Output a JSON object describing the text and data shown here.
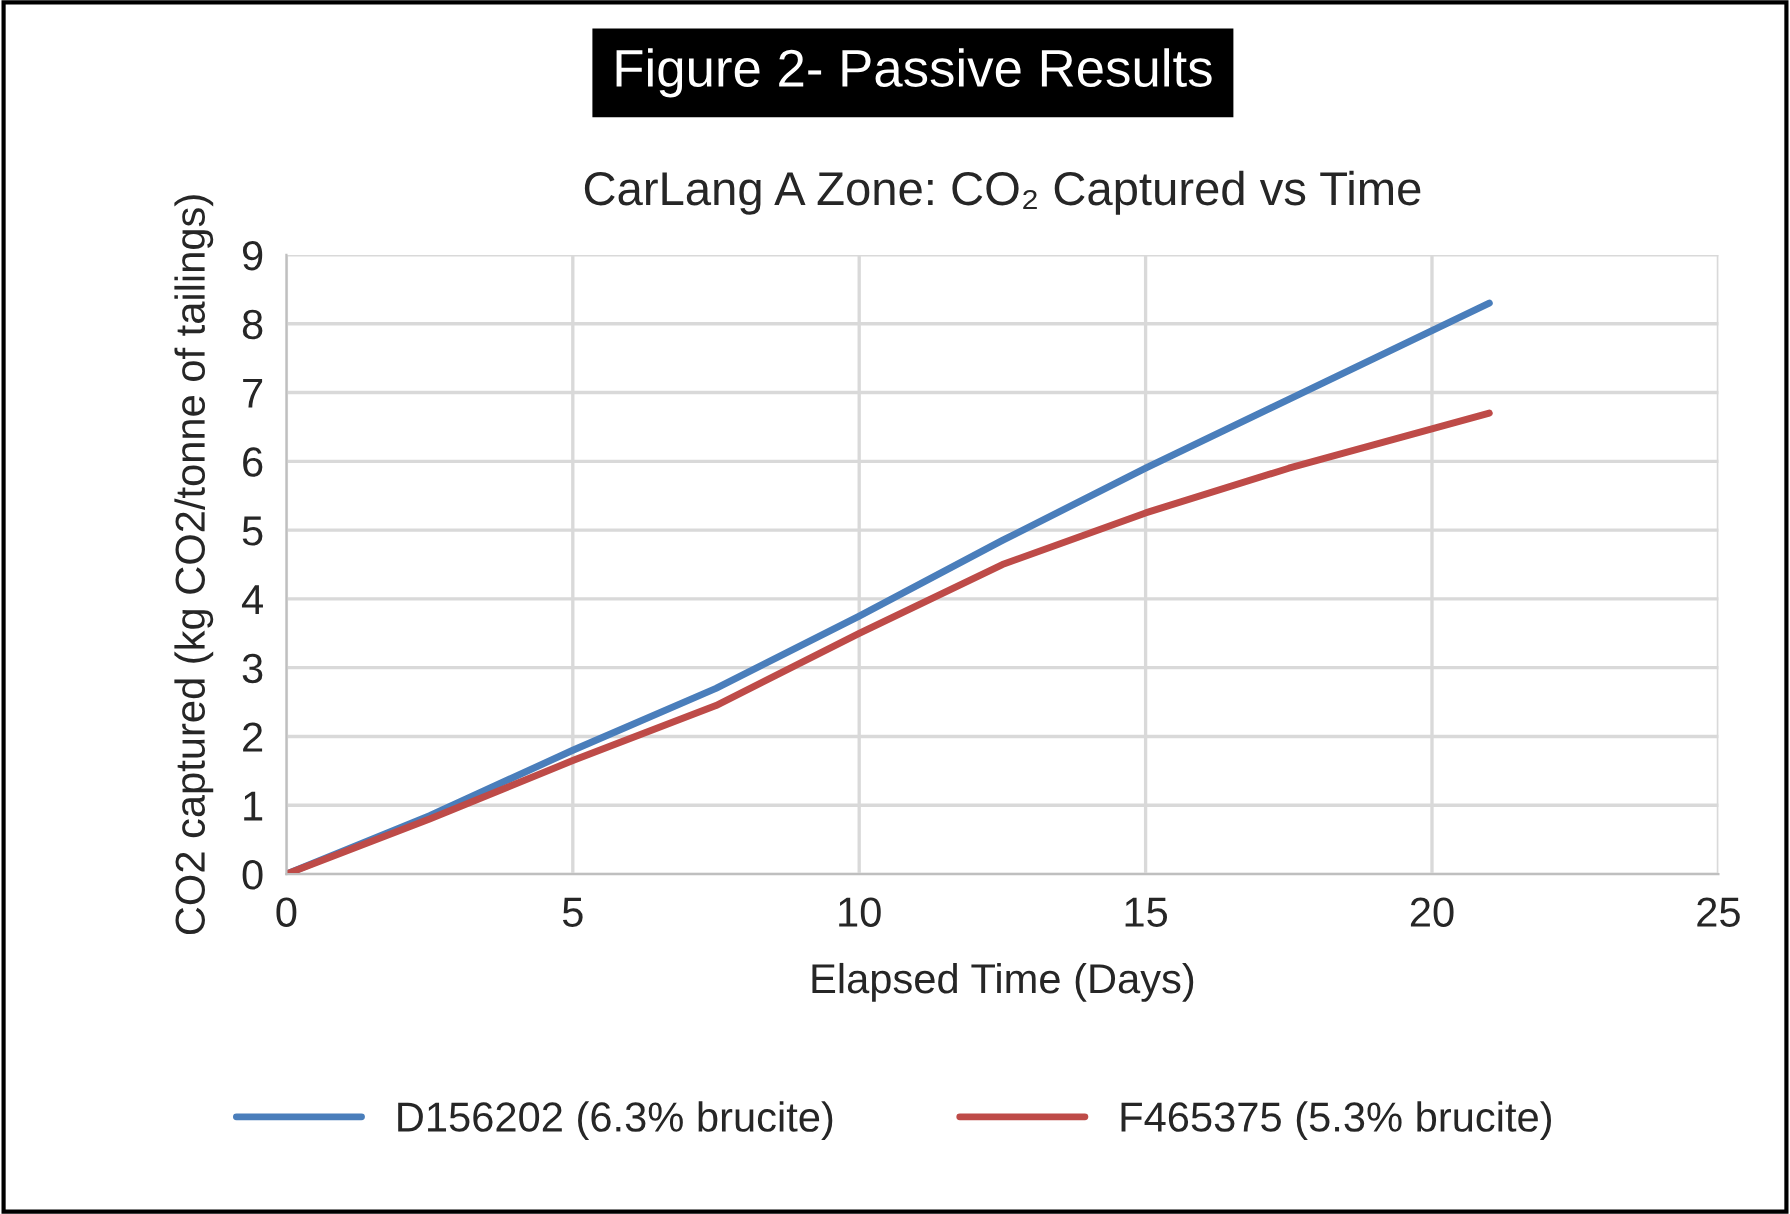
{
  "chart_data": {
    "type": "line",
    "title": "Figure 2- Passive Results",
    "subtitle": "CarLang A Zone: CO₂ Captured vs Time",
    "xlabel": "Elapsed Time (Days)",
    "ylabel": "CO2 captured (kg CO2/tonne of tailings)",
    "xlim": [
      0,
      25
    ],
    "xticks": [
      0,
      5,
      10,
      15,
      20,
      25
    ],
    "ylim": [
      0,
      9
    ],
    "yticks": [
      0,
      1,
      2,
      3,
      4,
      5,
      6,
      7,
      8,
      9
    ],
    "grid": true,
    "legend": "bottom",
    "marker": "none",
    "line_style": "solid",
    "series": [
      {
        "name": "D156202 (6.3% brucite)",
        "color": "#4a7ebb",
        "x": [
          0,
          2.5,
          5,
          7.5,
          10,
          12.5,
          15,
          17.5,
          21
        ],
        "values": [
          0,
          0.85,
          1.8,
          2.7,
          3.75,
          4.85,
          5.9,
          6.9,
          8.3
        ]
      },
      {
        "name": "F465375 (5.3% brucite)",
        "color": "#be4b48",
        "x": [
          0,
          2.5,
          5,
          7.5,
          10,
          12.5,
          15,
          17.5,
          21
        ],
        "values": [
          0,
          0.8,
          1.65,
          2.45,
          3.5,
          4.5,
          5.25,
          5.9,
          6.7
        ]
      }
    ]
  }
}
